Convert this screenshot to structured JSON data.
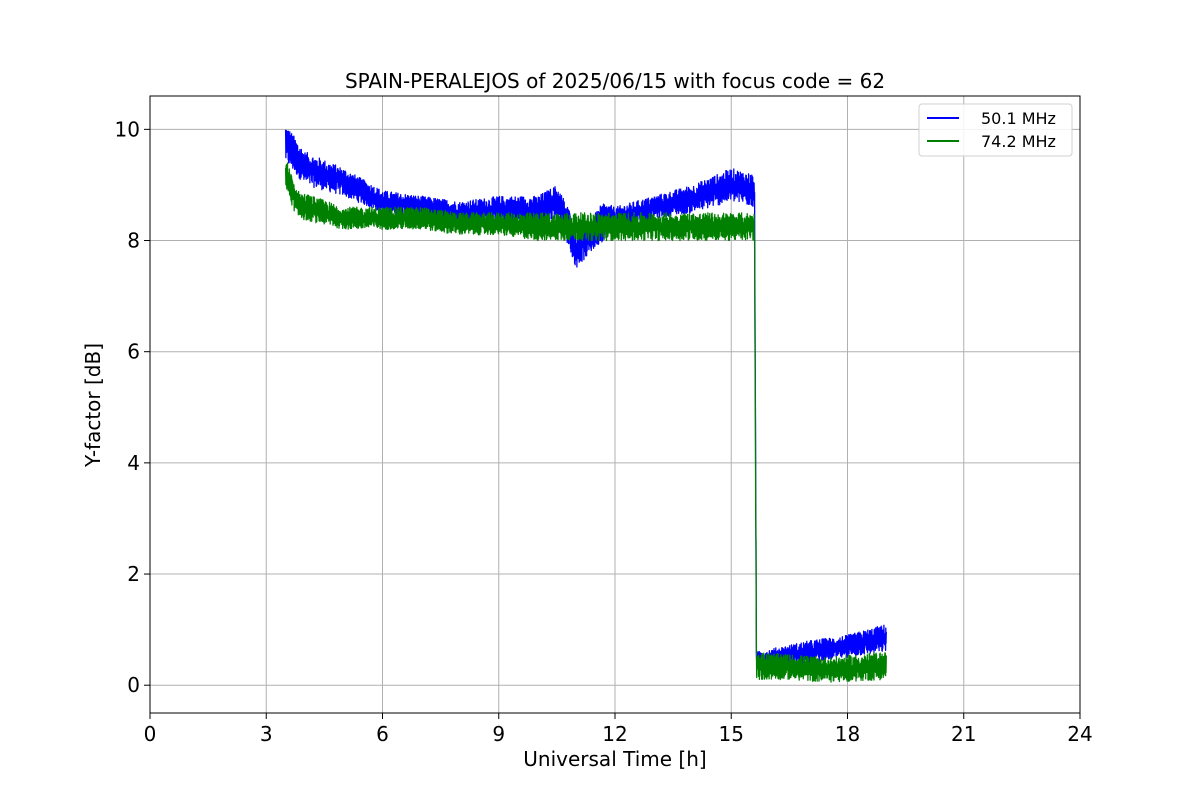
{
  "chart_data": {
    "type": "line",
    "title": "SPAIN-PERALEJOS of 2025/06/15 with focus code = 62",
    "xlabel": "Universal Time [h]",
    "ylabel": "Y-factor [dB]",
    "xlim": [
      0,
      24
    ],
    "ylim": [
      -0.5,
      10.6
    ],
    "xticks": [
      0,
      3,
      6,
      9,
      12,
      15,
      18,
      21,
      24
    ],
    "xtick_labels": [
      "0",
      "3",
      "6",
      "9",
      "12",
      "15",
      "18",
      "21",
      "24"
    ],
    "yticks": [
      0,
      2,
      4,
      6,
      8,
      10
    ],
    "ytick_labels": [
      "0",
      "2",
      "4",
      "6",
      "8",
      "10"
    ],
    "grid": true,
    "legend_position": "top-right",
    "series": [
      {
        "name": "50.1 MHz",
        "color": "#0000ff",
        "band": [
          {
            "x": 3.5,
            "low": 9.4,
            "high": 10.1
          },
          {
            "x": 4.0,
            "low": 9.0,
            "high": 9.6
          },
          {
            "x": 5.0,
            "low": 8.8,
            "high": 9.3
          },
          {
            "x": 6.0,
            "low": 8.5,
            "high": 8.9
          },
          {
            "x": 7.0,
            "low": 8.4,
            "high": 8.8
          },
          {
            "x": 8.0,
            "low": 8.3,
            "high": 8.7
          },
          {
            "x": 9.0,
            "low": 8.3,
            "high": 8.8
          },
          {
            "x": 10.0,
            "low": 8.3,
            "high": 8.8
          },
          {
            "x": 10.5,
            "low": 8.4,
            "high": 9.0
          },
          {
            "x": 10.8,
            "low": 7.9,
            "high": 8.6
          },
          {
            "x": 11.0,
            "low": 7.5,
            "high": 8.2
          },
          {
            "x": 11.4,
            "low": 7.8,
            "high": 8.4
          },
          {
            "x": 11.7,
            "low": 8.0,
            "high": 8.7
          },
          {
            "x": 12.0,
            "low": 8.2,
            "high": 8.6
          },
          {
            "x": 13.0,
            "low": 8.4,
            "high": 8.8
          },
          {
            "x": 14.0,
            "low": 8.5,
            "high": 9.0
          },
          {
            "x": 15.0,
            "low": 8.7,
            "high": 9.3
          },
          {
            "x": 15.6,
            "low": 8.6,
            "high": 9.2
          },
          {
            "x": 15.65,
            "low": 0.3,
            "high": 0.6
          },
          {
            "x": 17.0,
            "low": 0.4,
            "high": 0.8
          },
          {
            "x": 18.0,
            "low": 0.5,
            "high": 0.9
          },
          {
            "x": 19.0,
            "low": 0.6,
            "high": 1.1
          }
        ]
      },
      {
        "name": "74.2 MHz",
        "color": "#008000",
        "band": [
          {
            "x": 3.5,
            "low": 8.9,
            "high": 9.5
          },
          {
            "x": 3.8,
            "low": 8.4,
            "high": 8.9
          },
          {
            "x": 5.0,
            "low": 8.2,
            "high": 8.6
          },
          {
            "x": 6.0,
            "low": 8.2,
            "high": 8.6
          },
          {
            "x": 7.0,
            "low": 8.2,
            "high": 8.6
          },
          {
            "x": 8.0,
            "low": 8.1,
            "high": 8.5
          },
          {
            "x": 9.0,
            "low": 8.1,
            "high": 8.5
          },
          {
            "x": 10.0,
            "low": 8.0,
            "high": 8.5
          },
          {
            "x": 11.0,
            "low": 8.0,
            "high": 8.5
          },
          {
            "x": 12.0,
            "low": 8.0,
            "high": 8.5
          },
          {
            "x": 13.0,
            "low": 8.0,
            "high": 8.5
          },
          {
            "x": 14.0,
            "low": 8.0,
            "high": 8.5
          },
          {
            "x": 15.0,
            "low": 8.0,
            "high": 8.5
          },
          {
            "x": 15.6,
            "low": 8.0,
            "high": 8.5
          },
          {
            "x": 15.65,
            "low": 0.1,
            "high": 0.6
          },
          {
            "x": 16.5,
            "low": 0.1,
            "high": 0.55
          },
          {
            "x": 17.5,
            "low": 0.05,
            "high": 0.5
          },
          {
            "x": 19.0,
            "low": 0.1,
            "high": 0.6
          }
        ]
      }
    ]
  }
}
